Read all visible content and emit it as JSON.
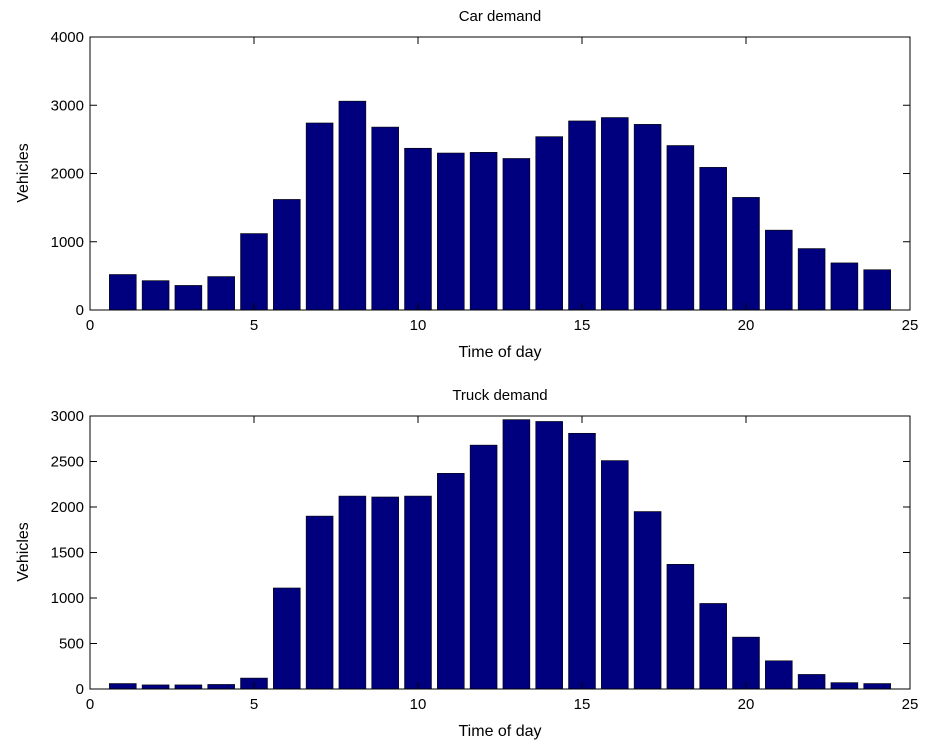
{
  "chart_data": [
    {
      "type": "bar",
      "title": "Car demand",
      "xlabel": "Time of day",
      "ylabel": "Vehicles",
      "xlim": [
        0,
        25
      ],
      "ylim": [
        0,
        4000
      ],
      "xticks": [
        0,
        5,
        10,
        15,
        20,
        25
      ],
      "yticks": [
        0,
        1000,
        2000,
        3000,
        4000
      ],
      "grid": false,
      "bar_color": "#00007f",
      "x": [
        1,
        2,
        3,
        4,
        5,
        6,
        7,
        8,
        9,
        10,
        11,
        12,
        13,
        14,
        15,
        16,
        17,
        18,
        19,
        20,
        21,
        22,
        23,
        24
      ],
      "values": [
        520,
        430,
        360,
        490,
        1120,
        1620,
        2740,
        3060,
        2680,
        2370,
        2300,
        2310,
        2220,
        2540,
        2770,
        2820,
        2720,
        2410,
        2090,
        1650,
        1170,
        900,
        690,
        590
      ]
    },
    {
      "type": "bar",
      "title": "Truck demand",
      "xlabel": "Time of day",
      "ylabel": "Vehicles",
      "xlim": [
        0,
        25
      ],
      "ylim": [
        0,
        3000
      ],
      "xticks": [
        0,
        5,
        10,
        15,
        20,
        25
      ],
      "yticks": [
        0,
        500,
        1000,
        1500,
        2000,
        2500,
        3000
      ],
      "grid": false,
      "bar_color": "#00007f",
      "x": [
        1,
        2,
        3,
        4,
        5,
        6,
        7,
        8,
        9,
        10,
        11,
        12,
        13,
        14,
        15,
        16,
        17,
        18,
        19,
        20,
        21,
        22,
        23,
        24
      ],
      "values": [
        60,
        45,
        45,
        50,
        120,
        1110,
        1900,
        2120,
        2110,
        2120,
        2370,
        2680,
        2960,
        2940,
        2810,
        2510,
        1950,
        1370,
        940,
        570,
        310,
        160,
        70,
        60
      ]
    }
  ]
}
